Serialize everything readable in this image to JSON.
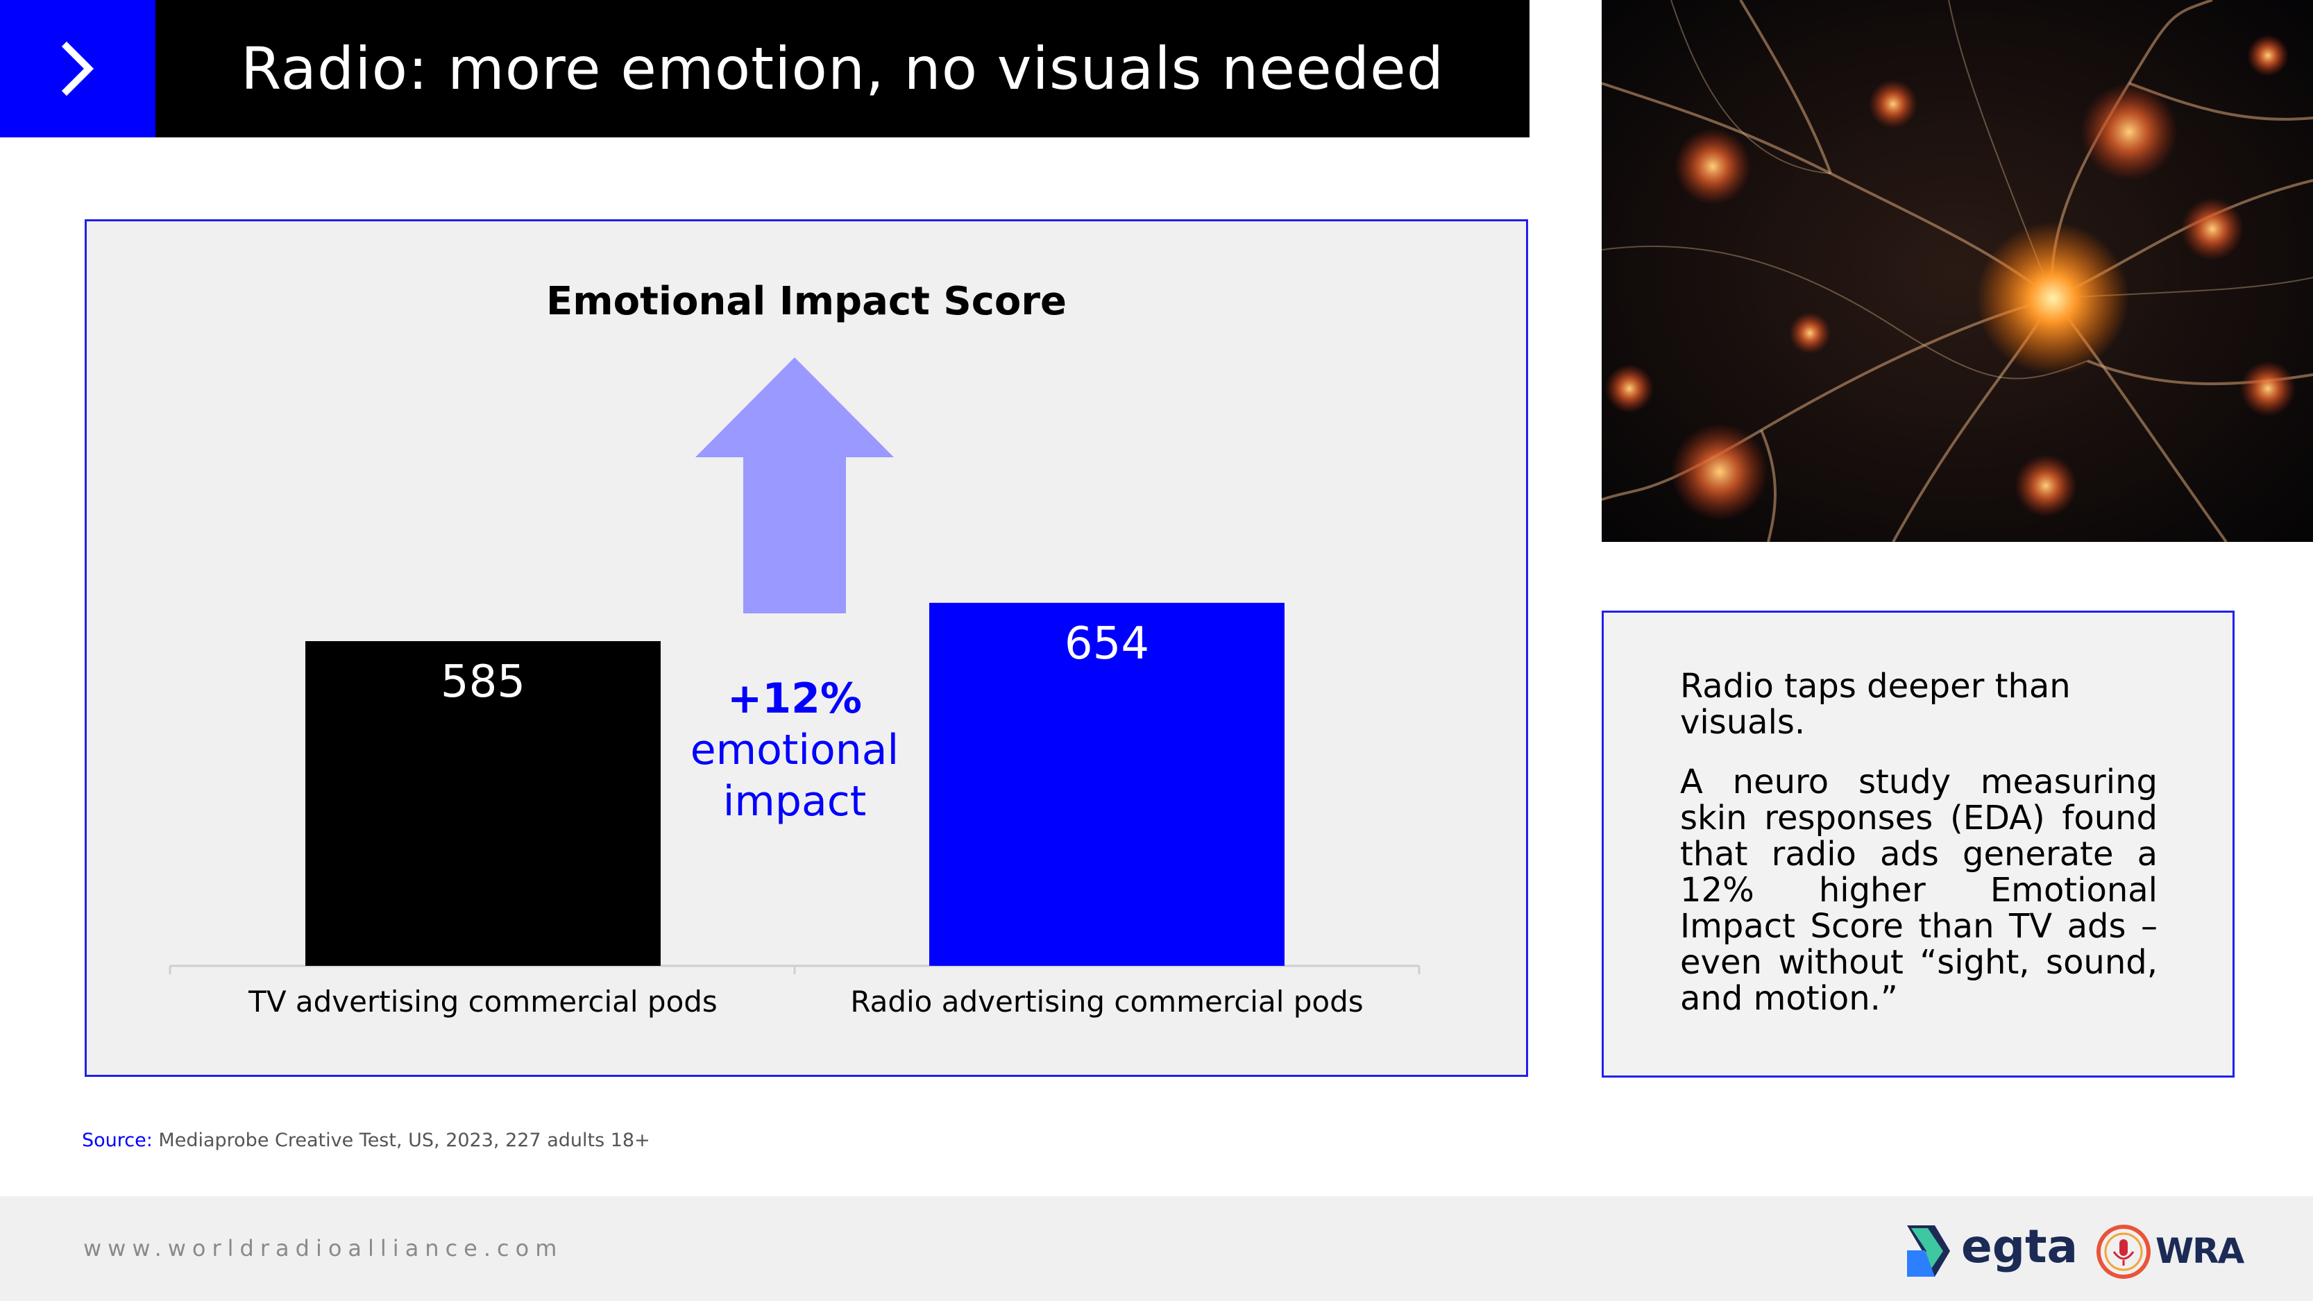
{
  "header": {
    "title": "Radio: more emotion, no visuals needed",
    "chevron_icon": "chevron-right-icon",
    "accent_color": "#0000ff",
    "bar_color": "#000000"
  },
  "chart_data": {
    "type": "bar",
    "title": "Emotional Impact Score",
    "categories": [
      "TV advertising commercial pods",
      "Radio advertising commercial pods"
    ],
    "values": [
      585,
      654
    ],
    "bar_colors": [
      "#000000",
      "#0000ff"
    ],
    "xlabel": "",
    "ylabel": "",
    "annotation": {
      "line1": "+12%",
      "line2": "emotional",
      "line3": "impact",
      "color": "#0000ff",
      "arrow_icon": "up-arrow-icon",
      "arrow_color": "#9999ff"
    },
    "grid": false
  },
  "textbox": {
    "para1": "Radio taps deeper than visuals.",
    "para2": "A neuro study measuring skin responses (EDA) found that radio ads generate a 12% higher Emotional Impact Score than TV ads – even without “sight, sound, and motion.”"
  },
  "source": {
    "label": "Source:",
    "text": " Mediaprobe Creative Test, US, 2023, 227 adults 18+"
  },
  "footer": {
    "url": "www.worldradioalliance.com",
    "logo1": "egta",
    "logo2": "WRA"
  }
}
